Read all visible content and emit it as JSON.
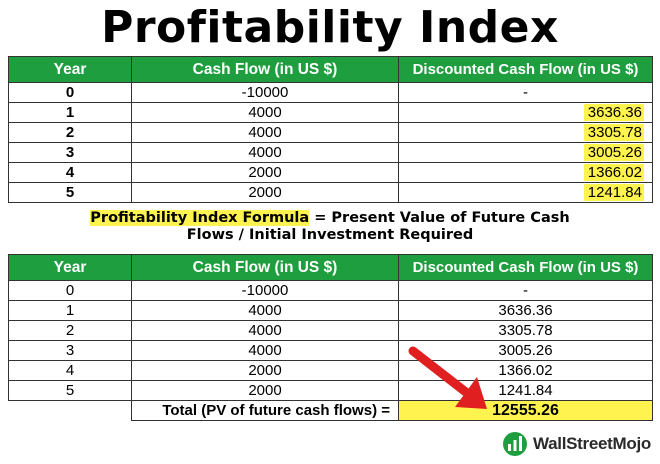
{
  "title": "Profitability Index",
  "headers": [
    "Year",
    "Cash Flow (in US $)",
    "Discounted Cash Flow (in US $)"
  ],
  "table1_rows": [
    {
      "year": "0",
      "cash_flow": "-10000",
      "discounted": "-"
    },
    {
      "year": "1",
      "cash_flow": "4000",
      "discounted": "3636.36"
    },
    {
      "year": "2",
      "cash_flow": "4000",
      "discounted": "3305.78"
    },
    {
      "year": "3",
      "cash_flow": "4000",
      "discounted": "3005.26"
    },
    {
      "year": "4",
      "cash_flow": "2000",
      "discounted": "1366.02"
    },
    {
      "year": "5",
      "cash_flow": "2000",
      "discounted": "1241.84"
    }
  ],
  "formula": {
    "label": "Profitability Index Formula",
    "equals": " = ",
    "line1_rest": "Present Value of Future Cash",
    "line2": "Flows / Initial Investment Required"
  },
  "table2_rows": [
    {
      "year": "0",
      "cash_flow": "-10000",
      "discounted": "-"
    },
    {
      "year": "1",
      "cash_flow": "4000",
      "discounted": "3636.36"
    },
    {
      "year": "2",
      "cash_flow": "4000",
      "discounted": "3305.78"
    },
    {
      "year": "3",
      "cash_flow": "4000",
      "discounted": "3005.26"
    },
    {
      "year": "4",
      "cash_flow": "2000",
      "discounted": "1366.02"
    },
    {
      "year": "5",
      "cash_flow": "2000",
      "discounted": "1241.84"
    }
  ],
  "total": {
    "label": "Total (PV of future cash flows) =",
    "value": "12555.26"
  },
  "brand": "WallStreetMojo",
  "colors": {
    "header_green": "#1e9e3e",
    "highlight_yellow": "#fff44f",
    "arrow_red": "#e02020"
  },
  "icons": [
    "red-arrow-icon",
    "wallstreetmojo-logo-icon"
  ]
}
